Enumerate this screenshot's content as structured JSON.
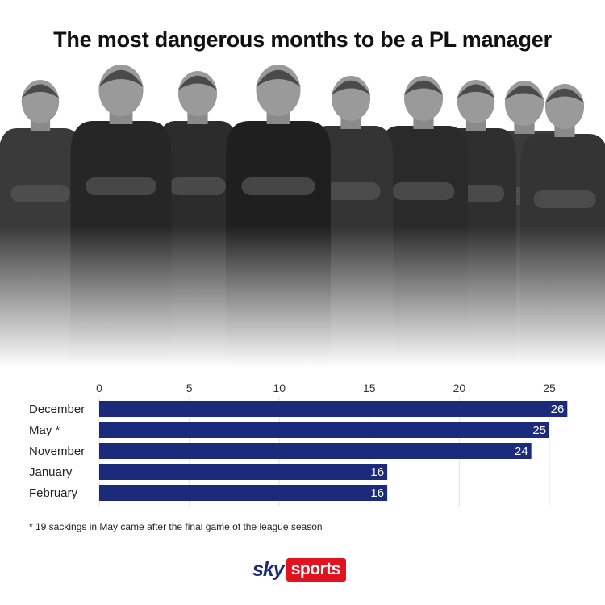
{
  "title": "The most dangerous months to be a PL manager",
  "footnote": "* 19 sackings in May came after the final game of the league season",
  "logo": {
    "sky": "sky",
    "sports": "sports"
  },
  "colors": {
    "bar": "#1b2a7a",
    "grid": "#e3e3e3",
    "text": "#222222"
  },
  "photo": {
    "subject": "manager-portraits"
  },
  "chart_data": {
    "type": "bar",
    "orientation": "horizontal",
    "categories": [
      "December",
      "May *",
      "November",
      "January",
      "February"
    ],
    "values": [
      26,
      25,
      24,
      16,
      16
    ],
    "title": "",
    "xlabel": "",
    "ylabel": "",
    "xlim": [
      0,
      26
    ],
    "ticks": [
      0,
      5,
      10,
      15,
      20,
      25
    ],
    "grid": true,
    "data_labels": true
  }
}
